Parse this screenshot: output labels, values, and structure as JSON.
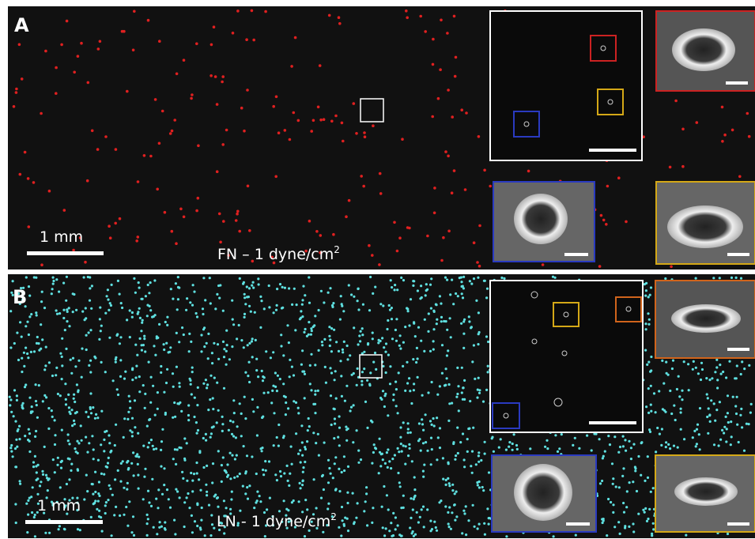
{
  "panels": [
    {
      "label": "A",
      "scale_bar": "1 mm",
      "condition": "FN – 1 dyne/cm",
      "superscript": "2"
    },
    {
      "label": "B",
      "scale_bar": "1 mm",
      "condition": "LN - 1 dyne/cm",
      "superscript": "2"
    }
  ]
}
